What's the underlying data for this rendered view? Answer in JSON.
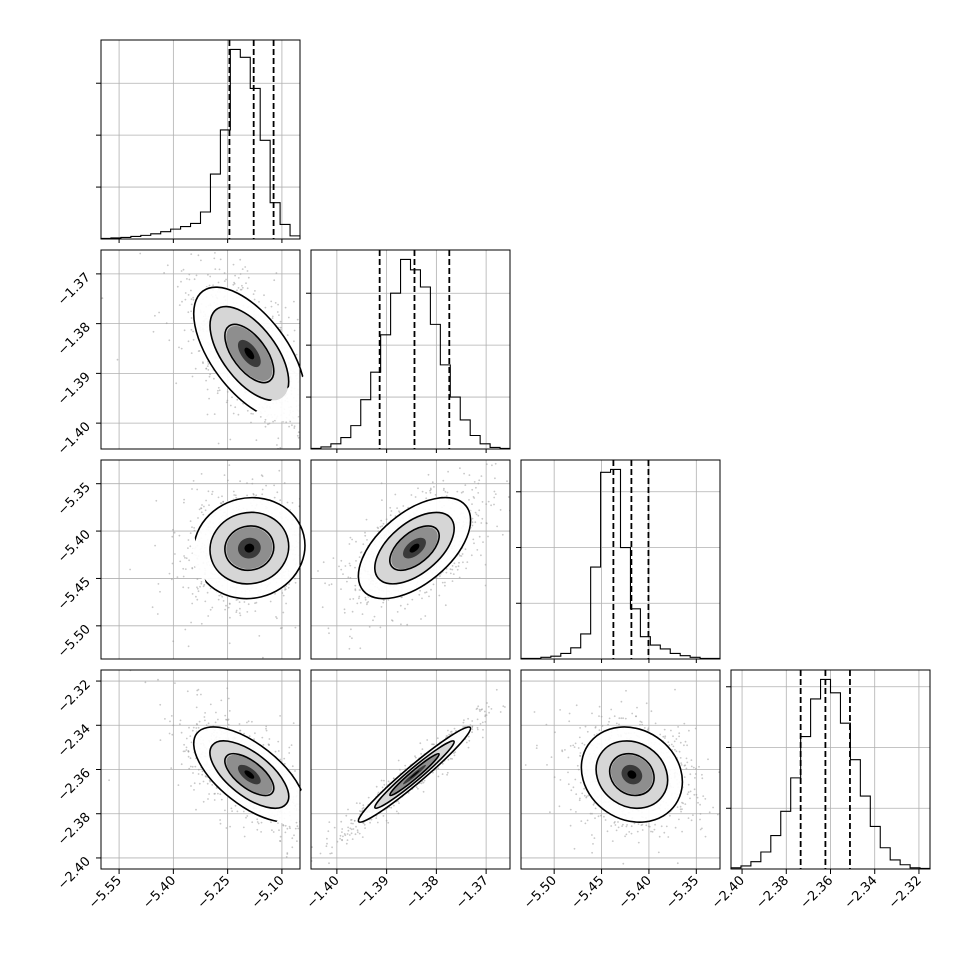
{
  "chart_data": {
    "type": "corner",
    "grid": true,
    "parameters": [
      {
        "range": [
          -5.6,
          -5.05
        ],
        "ticks": [
          -5.55,
          -5.4,
          -5.25,
          -5.1
        ],
        "tick_labels": [
          "−5.55",
          "−5.40",
          "−5.25",
          "−5.10"
        ],
        "quantiles": [
          -5.245,
          -5.178,
          -5.123
        ],
        "hist_edges_start": -5.6,
        "hist_bin_width": 0.0275,
        "hist_counts": [
          1,
          2,
          3,
          5,
          7,
          10,
          14,
          19,
          24,
          30,
          52,
          125,
          210,
          365,
          350,
          290,
          190,
          70,
          28,
          6
        ]
      },
      {
        "range": [
          -1.4052,
          -1.3652
        ],
        "ticks": [
          -1.4,
          -1.39,
          -1.38,
          -1.37
        ],
        "tick_labels": [
          "−1.40",
          "−1.39",
          "−1.38",
          "−1.37"
        ],
        "quantiles": [
          -1.3914,
          -1.3844,
          -1.3774
        ],
        "hist_edges_start": -1.4052,
        "hist_bin_width": 0.002,
        "hist_counts": [
          1,
          4,
          10,
          22,
          45,
          95,
          148,
          220,
          300,
          365,
          345,
          312,
          240,
          162,
          100,
          56,
          26,
          10,
          3,
          1
        ]
      },
      {
        "range": [
          -5.535,
          -5.325
        ],
        "ticks": [
          -5.5,
          -5.45,
          -5.4,
          -5.35
        ],
        "tick_labels": [
          "−5.50",
          "−5.45",
          "−5.40",
          "−5.35"
        ],
        "quantiles": [
          -5.4375,
          -5.4185,
          -5.4005
        ],
        "hist_edges_start": -5.535,
        "hist_bin_width": 0.0105,
        "hist_counts": [
          1,
          1,
          3,
          5,
          10,
          20,
          45,
          165,
          335,
          340,
          200,
          90,
          40,
          25,
          18,
          10,
          6,
          3,
          1,
          1
        ]
      },
      {
        "range": [
          -2.405,
          -2.315
        ],
        "ticks": [
          -2.4,
          -2.38,
          -2.36,
          -2.34,
          -2.32
        ],
        "tick_labels": [
          "−2.40",
          "−2.38",
          "−2.36",
          "−2.34",
          "−2.32"
        ],
        "quantiles": [
          -2.3735,
          -2.3623,
          -2.3512
        ],
        "hist_edges_start": -2.405,
        "hist_bin_width": 0.0045,
        "hist_counts": [
          2,
          5,
          12,
          28,
          55,
          95,
          150,
          218,
          280,
          312,
          290,
          240,
          180,
          120,
          70,
          35,
          15,
          7,
          2,
          1
        ]
      }
    ],
    "panels_2d": [
      {
        "row": 1,
        "col": 0,
        "mean": [
          -5.19,
          -1.386
        ],
        "sd": [
          0.075,
          0.0065
        ],
        "rho": -0.6
      },
      {
        "row": 2,
        "col": 0,
        "mean": [
          -5.19,
          -5.418
        ],
        "sd": [
          0.075,
          0.026
        ],
        "rho": 0.05
      },
      {
        "row": 2,
        "col": 1,
        "mean": [
          -1.3844,
          -5.418
        ],
        "sd": [
          0.0055,
          0.026
        ],
        "rho": 0.55
      },
      {
        "row": 3,
        "col": 0,
        "mean": [
          -5.19,
          -2.3623
        ],
        "sd": [
          0.075,
          0.0105
        ],
        "rho": -0.65
      },
      {
        "row": 3,
        "col": 1,
        "mean": [
          -1.3844,
          -2.3623
        ],
        "sd": [
          0.0055,
          0.0105
        ],
        "rho": 0.97
      },
      {
        "row": 3,
        "col": 2,
        "mean": [
          -5.418,
          -2.3623
        ],
        "sd": [
          0.026,
          0.0105
        ],
        "rho": -0.15
      }
    ]
  }
}
